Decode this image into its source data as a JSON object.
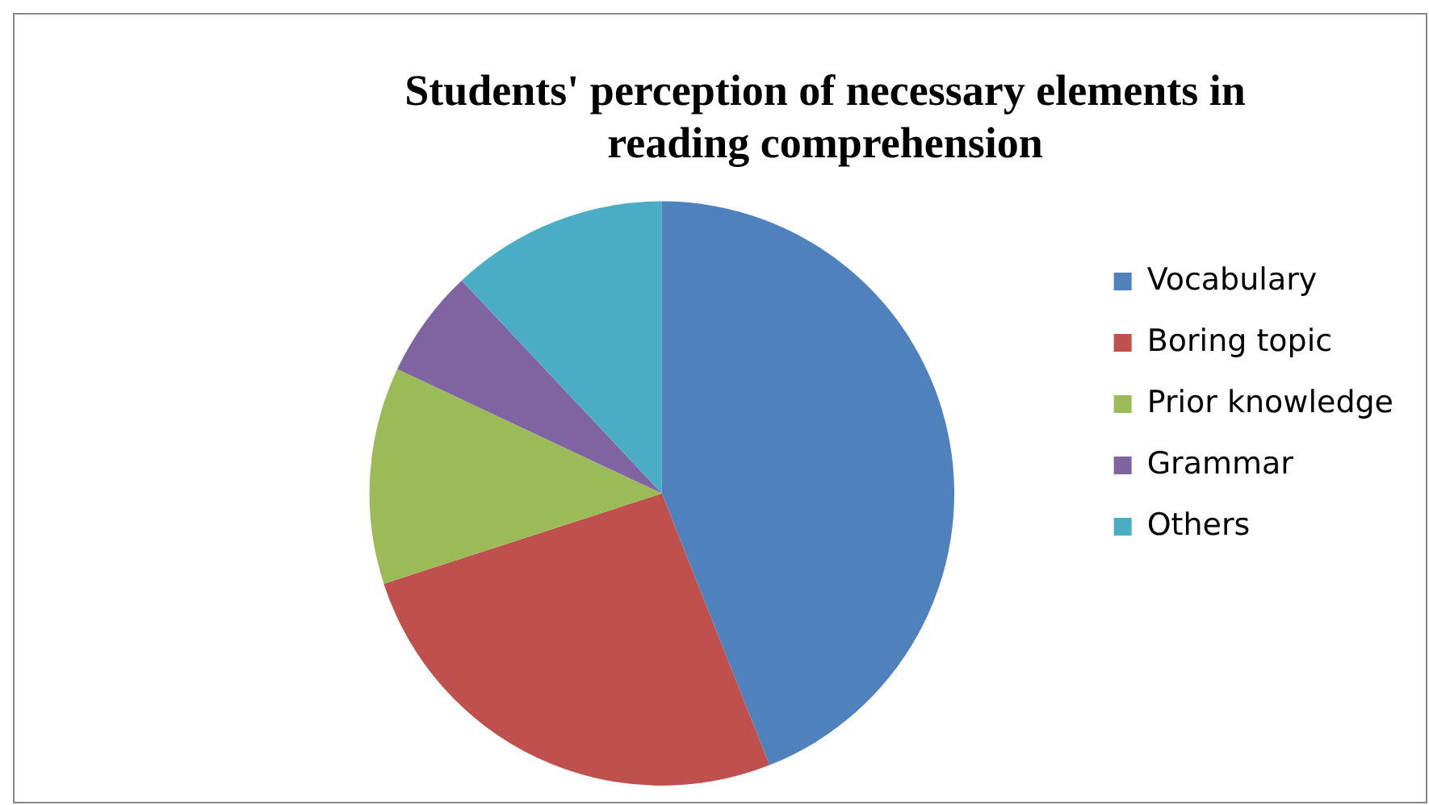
{
  "chart_data": {
    "type": "pie",
    "title": "Students' perception of necessary elements in reading comprehension",
    "categories": [
      "Vocabulary",
      "Boring topic",
      "Prior knowledge",
      "Grammar",
      "Others"
    ],
    "values": [
      44,
      26,
      12,
      6,
      12
    ],
    "colors": [
      "#4f81bd",
      "#c0504d",
      "#9bbb59",
      "#8064a2",
      "#4bacc6"
    ],
    "legend": "right"
  }
}
